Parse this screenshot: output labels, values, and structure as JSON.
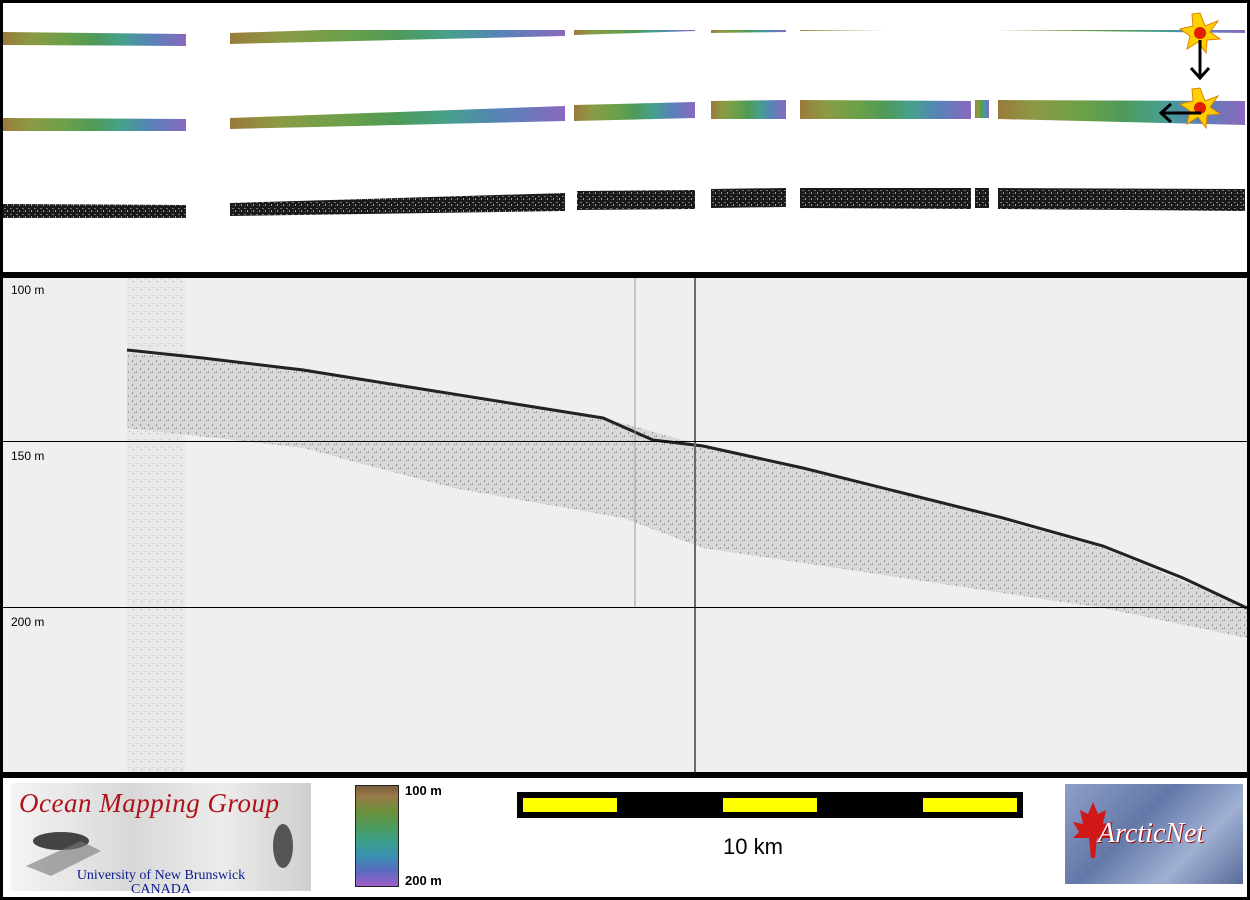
{
  "profile": {
    "depth_labels": [
      "100 m",
      "150 m",
      "200 m"
    ]
  },
  "legend": {
    "group_name": "Ocean Mapping Group",
    "university": "University of New Brunswick",
    "country": "CANADA",
    "colorbar_top": "100 m",
    "colorbar_bottom": "200 m",
    "scale_text": "10 km",
    "partner_logo_text": "ArcticNet"
  },
  "colors": {
    "scale_segment": "#ffff00",
    "omg_title": "#b0121a",
    "omg_sub": "#0a1a8a"
  },
  "icons": [
    "sun-marker-icon",
    "down-arrow-icon",
    "left-arrow-icon",
    "maple-leaf-icon"
  ]
}
